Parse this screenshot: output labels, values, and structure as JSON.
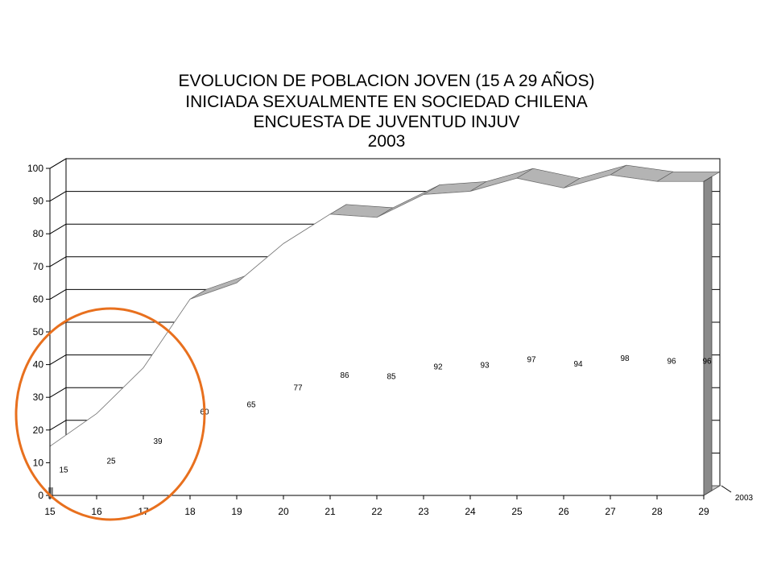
{
  "chart_data": {
    "type": "area",
    "title": [
      "EVOLUCION DE POBLACION JOVEN (15 A 29 AÑOS)",
      "INICIADA SEXUALMENTE EN SOCIEDAD CHILENA",
      "ENCUESTA DE JUVENTUD INJUV",
      "2003"
    ],
    "categories": [
      "15",
      "16",
      "17",
      "18",
      "19",
      "20",
      "21",
      "22",
      "23",
      "24",
      "25",
      "26",
      "27",
      "28",
      "29"
    ],
    "series": [
      {
        "name": "2003",
        "values": [
          15,
          25,
          39,
          60,
          65,
          77,
          86,
          85,
          92,
          93,
          97,
          94,
          98,
          96,
          96
        ]
      }
    ],
    "y_ticks": [
      "0",
      "10",
      "20",
      "30",
      "40",
      "50",
      "60",
      "70",
      "80",
      "90",
      "100"
    ],
    "ylim": [
      0,
      100
    ],
    "grid": true,
    "legend_position": "right",
    "three_d": true,
    "annotation": {
      "type": "ellipse",
      "color": "#e8701e",
      "covers_categories": [
        "15",
        "16",
        "17"
      ]
    }
  }
}
